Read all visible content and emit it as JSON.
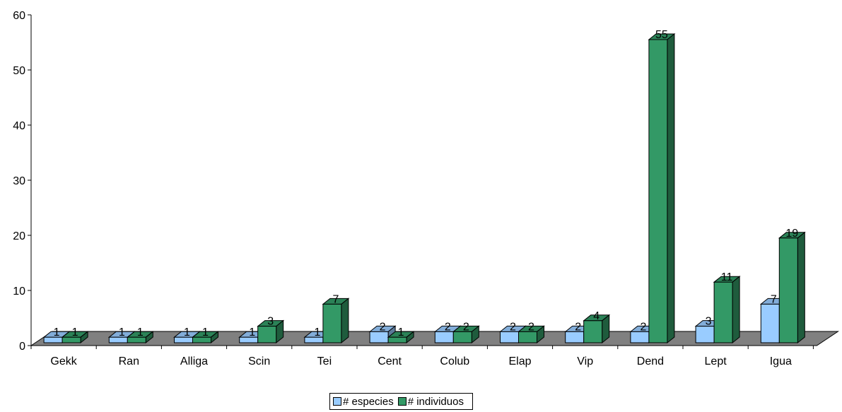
{
  "chart_data": {
    "type": "bar",
    "categories": [
      "Gekk",
      "Ran",
      "Alliga",
      "Scin",
      "Tei",
      "Cent",
      "Colub",
      "Elap",
      "Vip",
      "Dend",
      "Lept",
      "Igua"
    ],
    "series": [
      {
        "name": "# especies",
        "values": [
          1,
          1,
          1,
          1,
          1,
          2,
          2,
          2,
          2,
          2,
          3,
          7
        ],
        "color": "#99ccff"
      },
      {
        "name": "# individuos",
        "values": [
          1,
          1,
          1,
          3,
          7,
          1,
          2,
          2,
          4,
          55,
          11,
          19
        ],
        "color": "#339966"
      }
    ],
    "ylim": [
      0,
      60
    ],
    "yticks": [
      0,
      10,
      20,
      30,
      40,
      50,
      60
    ],
    "legend_position": "bottom",
    "grid": false,
    "style": "3d-clustered-column"
  }
}
